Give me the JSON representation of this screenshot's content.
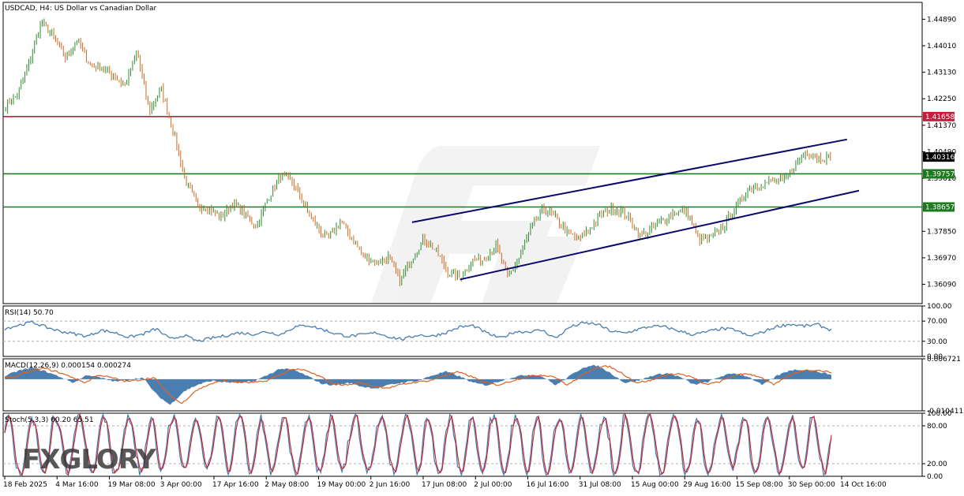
{
  "header": {
    "title": "USDCAD, H4:  US Dollar vs Canadian Dollar"
  },
  "watermark": {
    "text": "FXGLORY"
  },
  "colors": {
    "background": "#ffffff",
    "grid": "#c8c8c8",
    "bull_candle": "#2e8b2e",
    "bear_candle": "#d2691e",
    "resistance_line": "#c41e3a",
    "support_line": "#1e7a1e",
    "channel_line": "#0a0a6e",
    "indicator_line": "#4a7eb0",
    "macd_signal": "#e0601e",
    "stoch_signal": "#d0202a",
    "current_price_tag": "#000000"
  },
  "chart_data": [
    {
      "type": "candlestick",
      "symbol": "USDCAD",
      "timeframe": "H4",
      "title": "USDCAD, H4:  US Dollar vs Canadian Dollar",
      "ylim": [
        1.3545,
        1.4545
      ],
      "y_ticks": [
        "1.44890",
        "1.44010",
        "1.43130",
        "1.42250",
        "1.41370",
        "1.40490",
        "1.39610",
        "1.37850",
        "1.36970",
        "1.36090"
      ],
      "x_tick_labels": [
        "18 Feb 2025",
        "4 Mar 16:00",
        "19 Mar 08:00",
        "3 Apr 00:00",
        "17 Apr 16:00",
        "2 May 08:00",
        "19 May 00:00",
        "2 Jun 16:00",
        "17 Jun 08:00",
        "2 Jul 00:00",
        "16 Jul 16:00",
        "31 Jul 08:00",
        "15 Aug 00:00",
        "29 Aug 16:00",
        "15 Sep 08:00",
        "30 Sep 00:00",
        "14 Oct 16:00"
      ],
      "close_path": [
        [
          "18 Feb 2025",
          1.42
        ],
        [
          "22 Feb",
          1.424
        ],
        [
          "26 Feb",
          1.435
        ],
        [
          "1 Mar",
          1.448
        ],
        [
          "4 Mar 16:00",
          1.443
        ],
        [
          "7 Mar",
          1.436
        ],
        [
          "11 Mar",
          1.442
        ],
        [
          "15 Mar",
          1.434
        ],
        [
          "19 Mar 08:00",
          1.433
        ],
        [
          "23 Mar",
          1.43
        ],
        [
          "27 Mar",
          1.427
        ],
        [
          "30 Mar",
          1.438
        ],
        [
          "3 Apr 00:00",
          1.418
        ],
        [
          "5 Apr",
          1.426
        ],
        [
          "7 Apr",
          1.412
        ],
        [
          "10 Apr",
          1.396
        ],
        [
          "13 Apr",
          1.387
        ],
        [
          "17 Apr 16:00",
          1.386
        ],
        [
          "21 Apr",
          1.383
        ],
        [
          "25 Apr",
          1.388
        ],
        [
          "28 Apr",
          1.384
        ],
        [
          "2 May 08:00",
          1.38
        ],
        [
          "5 May",
          1.39
        ],
        [
          "8 May",
          1.397
        ],
        [
          "12 May",
          1.395
        ],
        [
          "15 May",
          1.387
        ],
        [
          "19 May 00:00",
          1.38
        ],
        [
          "22 May",
          1.376
        ],
        [
          "26 May",
          1.382
        ],
        [
          "29 May",
          1.376
        ],
        [
          "2 Jun 16:00",
          1.37
        ],
        [
          "6 Jun",
          1.368
        ],
        [
          "10 Jun",
          1.37
        ],
        [
          "13 Jun",
          1.362
        ],
        [
          "17 Jun 08:00",
          1.37
        ],
        [
          "20 Jun",
          1.376
        ],
        [
          "24 Jun",
          1.372
        ],
        [
          "28 Jun",
          1.365
        ],
        [
          "2 Jul 00:00",
          1.363
        ],
        [
          "6 Jul",
          1.369
        ],
        [
          "10 Jul",
          1.369
        ],
        [
          "13 Jul",
          1.374
        ],
        [
          "16 Jul 16:00",
          1.363
        ],
        [
          "20 Jul",
          1.37
        ],
        [
          "24 Jul",
          1.38
        ],
        [
          "28 Jul",
          1.386
        ],
        [
          "31 Jul 08:00",
          1.383
        ],
        [
          "4 Aug",
          1.378
        ],
        [
          "8 Aug",
          1.376
        ],
        [
          "11 Aug",
          1.38
        ],
        [
          "15 Aug 00:00",
          1.385
        ],
        [
          "19 Aug",
          1.386
        ],
        [
          "22 Aug",
          1.384
        ],
        [
          "26 Aug",
          1.377
        ],
        [
          "29 Aug 16:00",
          1.379
        ],
        [
          "2 Sep",
          1.382
        ],
        [
          "6 Sep",
          1.385
        ],
        [
          "10 Sep",
          1.385
        ],
        [
          "13 Sep",
          1.376
        ],
        [
          "15 Sep 08:00",
          1.376
        ],
        [
          "19 Sep",
          1.38
        ],
        [
          "22 Sep",
          1.386
        ],
        [
          "26 Sep",
          1.392
        ],
        [
          "30 Sep 00:00",
          1.394
        ],
        [
          "3 Oct",
          1.395
        ],
        [
          "7 Oct",
          1.395
        ],
        [
          "10 Oct",
          1.4
        ],
        [
          "14 Oct 16:00",
          1.405
        ],
        [
          "16 Oct",
          1.403
        ],
        [
          "18 Oct",
          1.4032
        ]
      ],
      "horizontal_levels": [
        {
          "label": "1.41658",
          "value": 1.41658,
          "kind": "resistance"
        },
        {
          "label": "1.39757",
          "value": 1.39757,
          "kind": "support"
        },
        {
          "label": "1.38657",
          "value": 1.38657,
          "kind": "support"
        }
      ],
      "current_price": {
        "label": "1.40316",
        "value": 1.40316
      },
      "channel": {
        "upper": [
          [
            "17 Jun 08:00",
            1.3815
          ],
          [
            "16 Oct",
            1.409
          ]
        ],
        "lower": [
          [
            "2 Jul 00:00",
            1.3625
          ],
          [
            "18 Oct",
            1.392
          ]
        ]
      },
      "grid": true
    },
    {
      "type": "line",
      "indicator": "RSI",
      "label": "RSI(14) 50.70",
      "ylim": [
        0,
        100
      ],
      "y_ticks": [
        "100.00",
        "70.00",
        "30.00",
        "0.00"
      ],
      "levels": [
        70,
        30
      ],
      "path": [
        55,
        62,
        68,
        58,
        50,
        45,
        40,
        52,
        47,
        38,
        44,
        55,
        34,
        42,
        30,
        36,
        41,
        47,
        44,
        49,
        43,
        58,
        62,
        54,
        45,
        40,
        43,
        47,
        38,
        34,
        43,
        40,
        47,
        58,
        61,
        46,
        36,
        49,
        49,
        52,
        36,
        58,
        66,
        64,
        50,
        46,
        54,
        60,
        58,
        50,
        43,
        49,
        55,
        53,
        40,
        48,
        59,
        64,
        60,
        63,
        52
      ]
    },
    {
      "type": "area",
      "indicator": "MACD",
      "label": "MACD(12,26,9) 0.000154 0.000274",
      "ylim": [
        -0.010411,
        0.006721
      ],
      "y_ticks": [
        "0.006721",
        "-0.010411"
      ],
      "histogram": [
        0.001,
        0.0028,
        0.0038,
        0.0025,
        0.0008,
        -0.0012,
        0.0015,
        0.0004,
        -0.0008,
        -0.0002,
        0.0006,
        -0.005,
        -0.0085,
        -0.004,
        -0.0018,
        -0.0005,
        -0.001,
        -0.0012,
        -0.0008,
        0.0012,
        0.0035,
        0.003,
        0.001,
        -0.0015,
        -0.002,
        -0.0012,
        -0.0025,
        -0.003,
        -0.0018,
        -0.001,
        -0.0005,
        0.0012,
        0.0025,
        0.001,
        -0.0012,
        -0.002,
        -0.0005,
        0.0008,
        0.0015,
        0.001,
        -0.002,
        0.001,
        0.004,
        0.0045,
        0.002,
        -0.0012,
        -0.0005,
        0.0012,
        0.002,
        0.0008,
        -0.0018,
        -0.001,
        0.001,
        0.002,
        0.0008,
        -0.002,
        0.001,
        0.003,
        0.0032,
        0.0025,
        0.0015
      ]
    },
    {
      "type": "line",
      "indicator": "Stochastic",
      "label": "Stoch(5,3,3) 60.20 65.51",
      "ylim": [
        0,
        100
      ],
      "y_ticks": [
        "100.00",
        "80.00",
        "20.00",
        "0.00"
      ],
      "levels": [
        80,
        20
      ],
      "k_value": 60.2,
      "d_value": 65.51
    }
  ]
}
